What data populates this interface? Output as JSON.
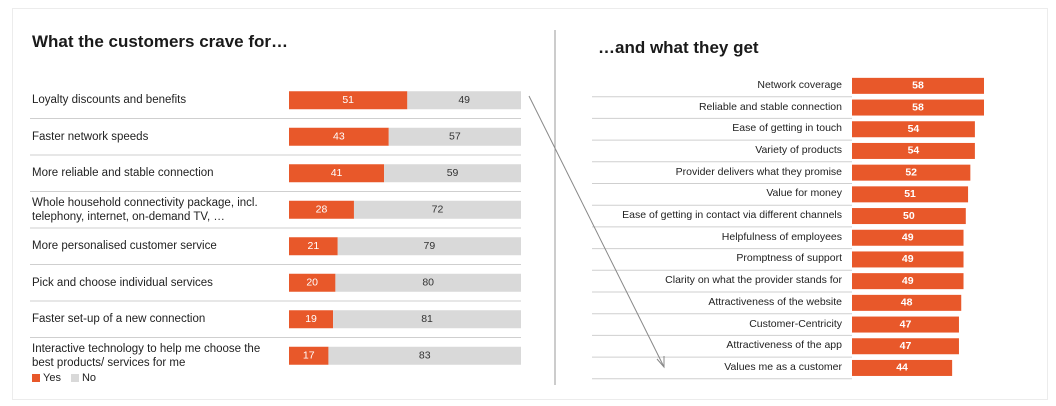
{
  "left": {
    "title": "What the customers crave for…",
    "legend": [
      {
        "label": "Yes",
        "color": "#e8582a"
      },
      {
        "label": "No",
        "color": "#d9d9d9"
      }
    ]
  },
  "right": {
    "title": "…and what they get"
  },
  "chart_data": [
    {
      "type": "bar",
      "stacked": true,
      "orientation": "horizontal",
      "title": "What the customers crave for…",
      "categories": [
        "Loyalty discounts and benefits",
        "Faster network speeds",
        "More reliable and stable connection",
        "Whole household connectivity package, incl. telephony, internet, on-demand TV, …",
        "More personalised customer service",
        "Pick and choose individual services",
        "Faster set-up of a new connection",
        "Interactive technology to help me choose the best products/ services for me"
      ],
      "series": [
        {
          "name": "Yes",
          "color": "#e8582a",
          "values": [
            51,
            43,
            41,
            28,
            21,
            20,
            19,
            17
          ]
        },
        {
          "name": "No",
          "color": "#d9d9d9",
          "values": [
            49,
            57,
            59,
            72,
            79,
            80,
            81,
            83
          ]
        }
      ],
      "xlim": [
        0,
        100
      ],
      "legend_position": "bottom-left"
    },
    {
      "type": "bar",
      "orientation": "horizontal",
      "title": "…and what they get",
      "categories": [
        "Network coverage",
        "Reliable and stable connection",
        "Ease of getting in touch",
        "Variety of products",
        "Provider delivers what they promise",
        "Value for money",
        "Ease of getting in contact via different channels",
        "Helpfulness of employees",
        "Promptness of support",
        "Clarity on what the provider stands for",
        "Attractiveness of the website",
        "Customer-Centricity",
        "Attractiveness of the app",
        "Values me as a customer"
      ],
      "values": [
        58,
        58,
        54,
        54,
        52,
        51,
        50,
        49,
        49,
        49,
        48,
        47,
        47,
        44
      ],
      "color": "#e8582a",
      "xlim": [
        0,
        58
      ]
    }
  ]
}
